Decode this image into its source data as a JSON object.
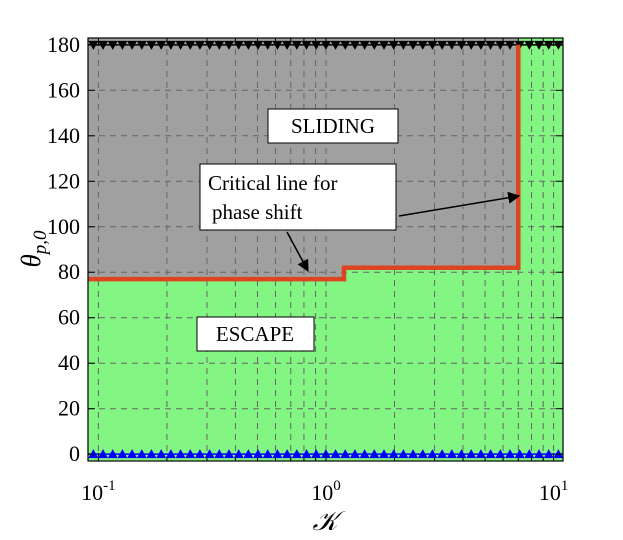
{
  "chart_data": {
    "type": "area",
    "title": "",
    "xlabel": "𝒦",
    "ylabel_main": "θ",
    "ylabel_sub": "p,0",
    "xscale": "log",
    "xlim": [
      0.09,
      11
    ],
    "ylim": [
      -3,
      183
    ],
    "grid": true,
    "x_ticks": [
      {
        "value": 0.1,
        "base": "10",
        "exp": "-1"
      },
      {
        "value": 1,
        "base": "10",
        "exp": "0"
      },
      {
        "value": 10,
        "base": "10",
        "exp": "1"
      }
    ],
    "y_ticks": [
      "0",
      "20",
      "40",
      "60",
      "80",
      "100",
      "120",
      "140",
      "160",
      "180"
    ],
    "regions": [
      {
        "name": "SLIDING",
        "color": "#a0a0a0"
      },
      {
        "name": "ESCAPE",
        "color": "#82f582"
      }
    ],
    "critical_line": {
      "name": "Critical line for phase shift",
      "color": "#dd4422",
      "x": [
        0.09,
        1.2,
        1.2,
        7.0,
        7.0
      ],
      "y": [
        77,
        77,
        82,
        82,
        180
      ]
    },
    "markers": {
      "top": {
        "y": 180,
        "shape": "triangle-down",
        "color": "#000000"
      },
      "bottom": {
        "y": 0,
        "shape": "triangle-up",
        "color": "#0000ff"
      }
    },
    "annotations": {
      "sliding_label": "SLIDING",
      "escape_label": "ESCAPE",
      "critical_line_1": "Critical line for",
      "critical_line_2": "phase shift"
    }
  }
}
